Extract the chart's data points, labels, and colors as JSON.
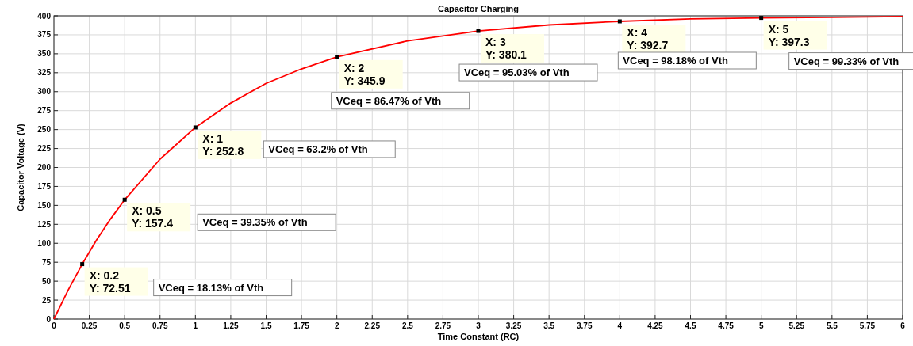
{
  "chart_data": {
    "type": "line",
    "title": "Capacitor Charging",
    "xlabel": "Time Constant (RC)",
    "ylabel": "Capacitor Voltage (V)",
    "xlim": [
      0,
      6
    ],
    "xticks": [
      0,
      0.25,
      0.5,
      0.75,
      1,
      1.25,
      1.5,
      1.75,
      2,
      2.25,
      2.5,
      2.75,
      3,
      3.25,
      3.5,
      3.75,
      4,
      4.25,
      4.5,
      4.75,
      5,
      5.25,
      5.5,
      5.75,
      6
    ],
    "ylim": [
      0,
      400
    ],
    "yticks": [
      0,
      25,
      50,
      75,
      100,
      125,
      150,
      175,
      200,
      225,
      250,
      275,
      300,
      325,
      350,
      375,
      400
    ],
    "grid": true,
    "line_style": "solid",
    "series": [
      {
        "color": "#ff0000",
        "marker": "none",
        "x": [
          0,
          0.1,
          0.2,
          0.3,
          0.4,
          0.5,
          0.75,
          1,
          1.25,
          1.5,
          1.75,
          2,
          2.5,
          3,
          3.5,
          4,
          4.5,
          5,
          5.5,
          6
        ],
        "values": [
          0,
          38,
          72.51,
          104,
          132,
          157.4,
          211,
          252.8,
          285,
          311,
          330,
          345.9,
          367,
          380.1,
          388,
          392.7,
          396,
          397.3,
          398,
          399
        ]
      },
      {
        "type": "scatter",
        "color": "#000000",
        "marker": "square",
        "x": [
          0.2,
          0.5,
          1,
          2,
          3,
          4,
          5
        ],
        "values": [
          72.51,
          157.4,
          252.8,
          345.9,
          380.1,
          392.7,
          397.3
        ]
      }
    ],
    "annotations": [
      {
        "text": "X: 0.2\nY: 72.51",
        "x": 0.2,
        "y": 72.51
      },
      {
        "text": "X: 0.5\nY: 157.4",
        "x": 0.5,
        "y": 157.4
      },
      {
        "text": "X: 1\nY: 252.8",
        "x": 1,
        "y": 252.8
      },
      {
        "text": "X: 2\nY: 345.9",
        "x": 2,
        "y": 345.9
      },
      {
        "text": "X: 3\nY: 380.1",
        "x": 3,
        "y": 380.1
      },
      {
        "text": "X: 4\nY: 392.7",
        "x": 4,
        "y": 392.7
      },
      {
        "text": "X: 5\nY: 397.3",
        "x": 5,
        "y": 397.3
      },
      "VCeq = 18.13% of Vth",
      "VCeq = 39.35% of Vth",
      "VCeq = 63.2% of Vth",
      "VCeq = 86.47% of Vth",
      "VCeq = 95.03% of Vth",
      "VCeq = 98.18% of Vth",
      "VCeq = 99.33% of Vth"
    ]
  }
}
